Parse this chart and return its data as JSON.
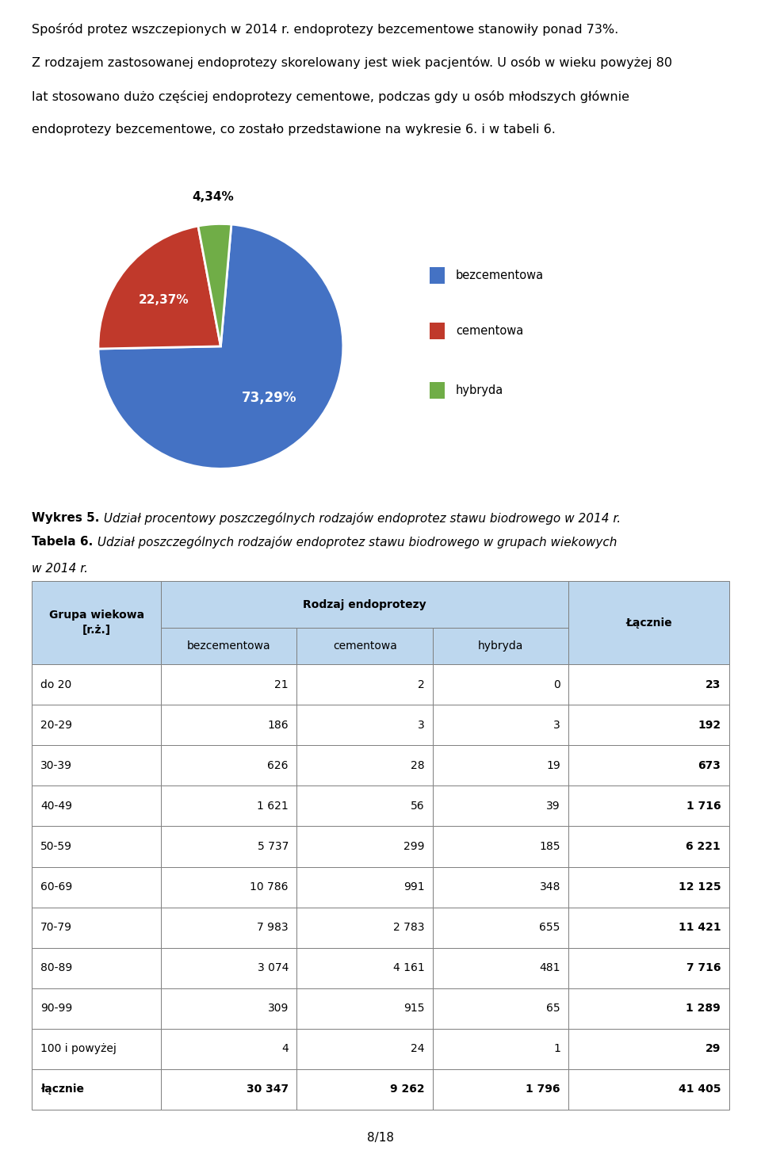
{
  "paragraph": "Spośród protez wszczepionych w 2014 r. endoprotezy bezcementowe stanowiły ponad 73%.\nZ rodzajem zastosowanej endoprotezy skorelowany jest wiek pacjentów. U osób w wieku powyżej 80\nlat stosowano dużo częściej endoprotezy cementowe, podczas gdy u osób młodszych głównie\nendoprotezy bezcementowe, co zostało przedstawione na wykresie 6. i w tabeli 6.",
  "pie_values": [
    73.29,
    22.37,
    4.34
  ],
  "pie_labels": [
    "73,29%",
    "22,37%",
    "4,34%"
  ],
  "pie_colors": [
    "#4472C4",
    "#C0392B",
    "#70AD47"
  ],
  "pie_legend_labels": [
    "bezcementowa",
    "cementowa",
    "hybryda"
  ],
  "caption_bold": "Wykres 5.",
  "caption_italic": " Udział procentowy poszczególnych rodzajów endoprotez stawu biodrowego w 2014 r.",
  "table_caption_bold": "Tabela 6.",
  "table_caption_italic": " Udział poszczególnych rodzajów endoprotez stawu biodrowego w grupach wiekowych",
  "table_caption_line2": "w 2014 r.",
  "table_rows": [
    [
      "do 20",
      "21",
      "2",
      "0",
      "23"
    ],
    [
      "20-29",
      "186",
      "3",
      "3",
      "192"
    ],
    [
      "30-39",
      "626",
      "28",
      "19",
      "673"
    ],
    [
      "40-49",
      "1 621",
      "56",
      "39",
      "1 716"
    ],
    [
      "50-59",
      "5 737",
      "299",
      "185",
      "6 221"
    ],
    [
      "60-69",
      "10 786",
      "991",
      "348",
      "12 125"
    ],
    [
      "70-79",
      "7 983",
      "2 783",
      "655",
      "11 421"
    ],
    [
      "80-89",
      "3 074",
      "4 161",
      "481",
      "7 716"
    ],
    [
      "90-99",
      "309",
      "915",
      "65",
      "1 289"
    ],
    [
      "100 i powyżej",
      "4",
      "24",
      "1",
      "29"
    ],
    [
      "łącznie",
      "30 347",
      "9 262",
      "1 796",
      "41 405"
    ]
  ],
  "header_bg": "#BDD7EE",
  "page_number": "8/18",
  "background_color": "#ffffff"
}
